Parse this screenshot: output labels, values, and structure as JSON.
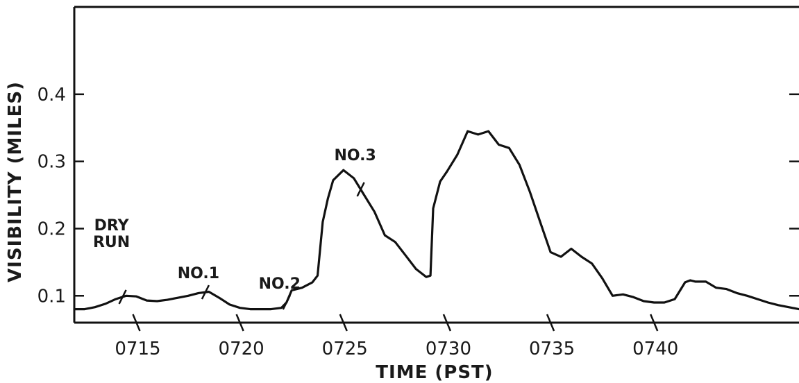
{
  "chart_data": {
    "type": "line",
    "xlabel": "TIME (PST)",
    "ylabel": "VISIBILITY (MILES)",
    "xlim": [
      "0712",
      "0747"
    ],
    "ylim": [
      0.06,
      0.53
    ],
    "grid": false,
    "legend": "none",
    "x_ticks": [
      "0715",
      "0720",
      "0725",
      "0730",
      "0735",
      "0740"
    ],
    "y_ticks": [
      0.1,
      0.2,
      0.3,
      0.4
    ],
    "y_tick_labels": [
      "0.1",
      "0.2",
      "0.3",
      "0.4"
    ],
    "series": [
      {
        "x": [
          "0712:00",
          "0712:30",
          "0713:00",
          "0713:30",
          "0714:00",
          "0714:30",
          "0715:00",
          "0715:30",
          "0716:00",
          "0716:30",
          "0717:00",
          "0717:30",
          "0718:00",
          "0718:30",
          "0719:00",
          "0719:30",
          "0720:00",
          "0720:30",
          "0721:00",
          "0721:30",
          "0722:00",
          "0722:15",
          "0722:30",
          "0723:00",
          "0723:30",
          "0723:45",
          "0724:00",
          "0724:15",
          "0724:30",
          "0725:00",
          "0725:30",
          "0726:00",
          "0726:30",
          "0727:00",
          "0727:30",
          "0728:00",
          "0728:30",
          "0729:00",
          "0729:12",
          "0729:20",
          "0729:40",
          "0730:00",
          "0730:30",
          "0731:00",
          "0731:30",
          "0732:00",
          "0732:30",
          "0733:00",
          "0733:30",
          "0734:00",
          "0734:30",
          "0735:00",
          "0735:30",
          "0736:00",
          "0736:30",
          "0737:00",
          "0737:30",
          "0738:00",
          "0738:30",
          "0739:00",
          "0739:30",
          "0740:00",
          "0740:30",
          "0741:00",
          "0741:30",
          "0741:45",
          "0742:00",
          "0742:30",
          "0743:00",
          "0743:30",
          "0744:00",
          "0744:30",
          "0745:00",
          "0745:30",
          "0746:00",
          "0746:30",
          "0747:00"
        ],
        "y": [
          0.08,
          0.08,
          0.083,
          0.088,
          0.095,
          0.1,
          0.099,
          0.093,
          0.092,
          0.094,
          0.097,
          0.1,
          0.104,
          0.106,
          0.097,
          0.087,
          0.082,
          0.08,
          0.08,
          0.08,
          0.082,
          0.09,
          0.108,
          0.112,
          0.12,
          0.13,
          0.21,
          0.245,
          0.272,
          0.287,
          0.275,
          0.25,
          0.225,
          0.19,
          0.18,
          0.16,
          0.14,
          0.128,
          0.13,
          0.23,
          0.27,
          0.285,
          0.31,
          0.345,
          0.34,
          0.345,
          0.325,
          0.32,
          0.295,
          0.255,
          0.21,
          0.165,
          0.158,
          0.17,
          0.158,
          0.148,
          0.126,
          0.1,
          0.102,
          0.098,
          0.092,
          0.09,
          0.09,
          0.095,
          0.12,
          0.123,
          0.121,
          0.121,
          0.112,
          0.11,
          0.104,
          0.1,
          0.095,
          0.09,
          0.086,
          0.083,
          0.08
        ]
      }
    ],
    "annotations": [
      {
        "label": [
          "DRY",
          "RUN"
        ],
        "at": "0714:20"
      },
      {
        "label": [
          "NO.1"
        ],
        "at": "0718:20"
      },
      {
        "label": [
          "NO.2"
        ],
        "at": "0722:15"
      },
      {
        "label": [
          "NO.3"
        ],
        "at": "0725:50"
      }
    ]
  }
}
